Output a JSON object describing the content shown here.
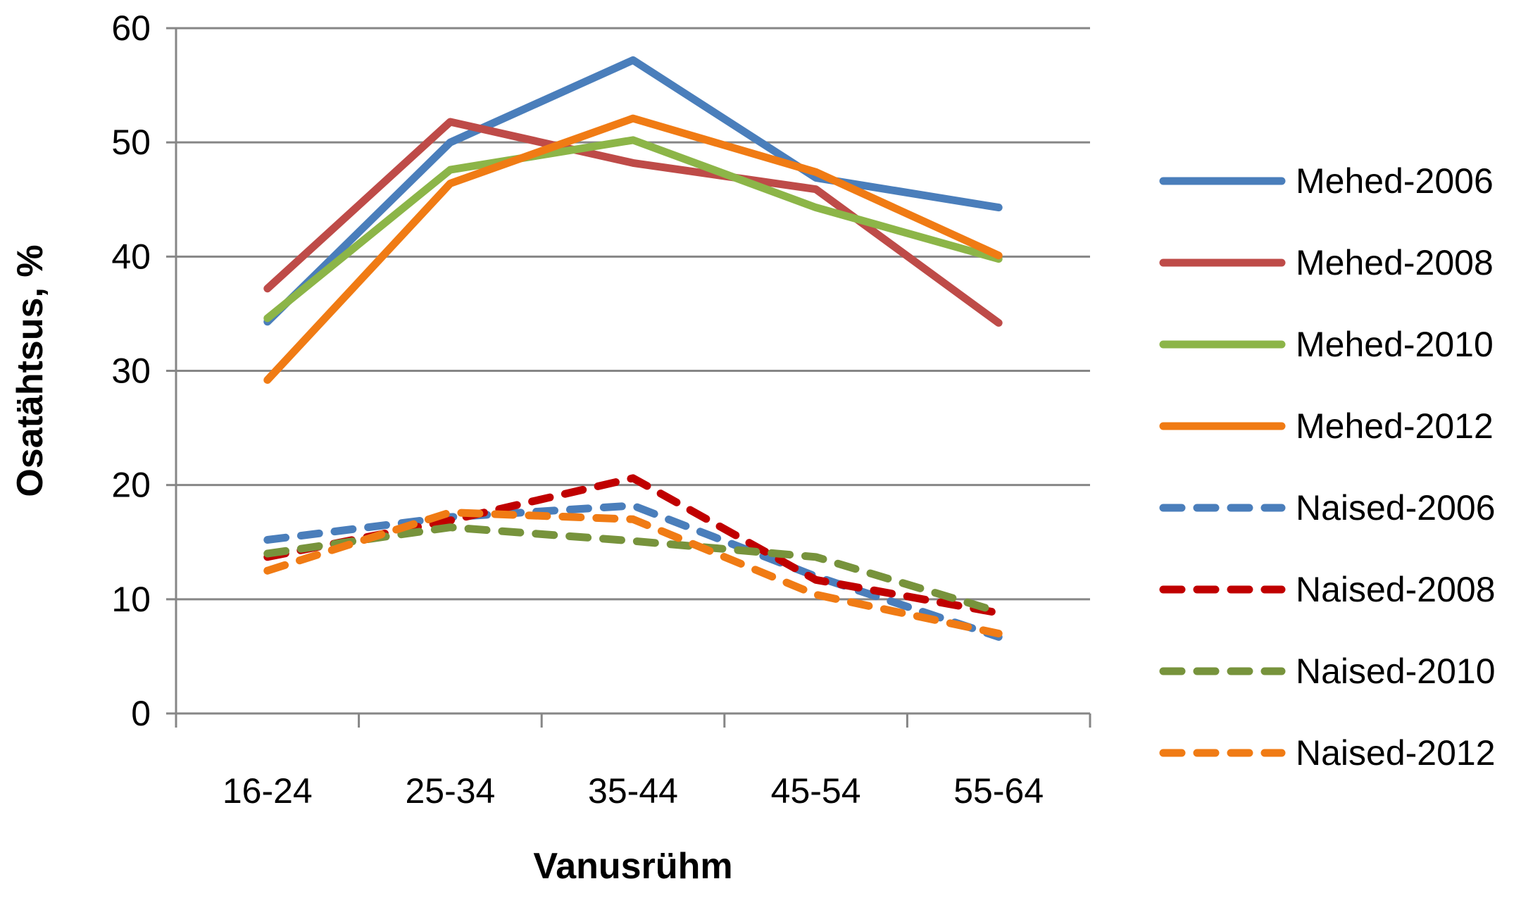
{
  "chart_data": {
    "type": "line",
    "title": "",
    "xlabel": "Vanusrühm",
    "ylabel": "Osatähtsus, %",
    "categories": [
      "16-24",
      "25-34",
      "35-44",
      "45-54",
      "55-64"
    ],
    "ylim": [
      0,
      60
    ],
    "yticks": [
      0,
      10,
      20,
      30,
      40,
      50,
      60
    ],
    "grid": "horizontal",
    "legend_position": "right",
    "series": [
      {
        "name": "Mehed-2006",
        "color": "#4a7ebb",
        "dash": "solid",
        "values": [
          34.3,
          50.0,
          57.2,
          46.9,
          44.3
        ]
      },
      {
        "name": "Mehed-2008",
        "color": "#be4b48",
        "dash": "solid",
        "values": [
          37.2,
          51.8,
          48.2,
          45.9,
          34.2
        ]
      },
      {
        "name": "Mehed-2010",
        "color": "#8cb548",
        "dash": "solid",
        "values": [
          34.6,
          47.6,
          50.2,
          44.3,
          39.8
        ]
      },
      {
        "name": "Mehed-2012",
        "color": "#f07b14",
        "dash": "solid",
        "values": [
          29.2,
          46.4,
          52.1,
          47.4,
          40.1
        ]
      },
      {
        "name": "Naised-2006",
        "color": "#4a7ebb",
        "dash": "dashed",
        "values": [
          15.2,
          17.2,
          18.2,
          12.0,
          6.7
        ]
      },
      {
        "name": "Naised-2008",
        "color": "#c00000",
        "dash": "dashed",
        "values": [
          13.7,
          16.9,
          20.6,
          11.7,
          8.8
        ]
      },
      {
        "name": "Naised-2010",
        "color": "#77933c",
        "dash": "dashed",
        "values": [
          14.0,
          16.3,
          15.1,
          13.7,
          8.9
        ]
      },
      {
        "name": "Naised-2012",
        "color": "#f07b14",
        "dash": "dashed",
        "values": [
          12.5,
          17.6,
          17.0,
          10.4,
          7.0
        ]
      }
    ]
  }
}
